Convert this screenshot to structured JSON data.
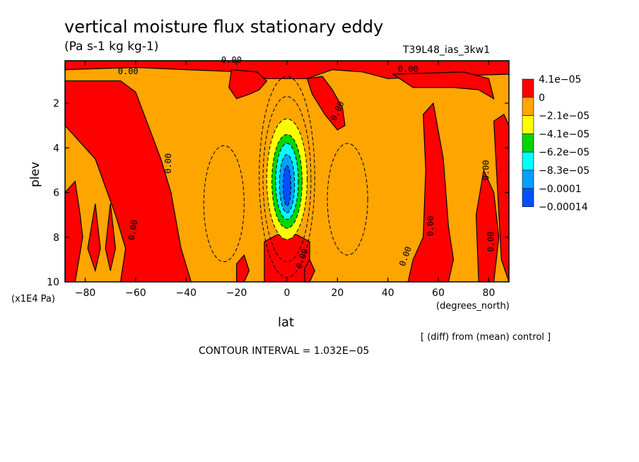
{
  "chart_data": {
    "type": "heatmap",
    "title": "vertical moisture flux stationary eddy",
    "units": "(Pa s-1 kg kg-1)",
    "run_id": "T39L48_ias_3kw1",
    "xlabel": "lat",
    "x_units": "(degrees_north)",
    "ylabel": "plev",
    "y_units": "(x1E4 Pa)",
    "xlim": [
      -88,
      88
    ],
    "ylim": [
      10,
      0.1
    ],
    "x_ticks": [
      -80,
      -60,
      -40,
      -20,
      0,
      20,
      40,
      60,
      80
    ],
    "x_tick_labels": [
      "−80",
      "−60",
      "−40",
      "−20",
      "0",
      "20",
      "40",
      "60",
      "80"
    ],
    "y_ticks": [
      2,
      4,
      6,
      8,
      10
    ],
    "y_tick_labels": [
      "2",
      "4",
      "6",
      "8",
      "10"
    ],
    "contour_interval_label": "CONTOUR INTERVAL = 1.032E−05",
    "note": "[ (diff) from (mean) control ]",
    "contour_labels": [
      "0.00"
    ],
    "legend": {
      "placement": "right",
      "labels": [
        "4.1e−05",
        "0",
        "−2.1e−05",
        "−4.1e−05",
        "−6.2e−05",
        "−8.3e−05",
        "−0.0001",
        "−0.00014"
      ],
      "colors": [
        "#ff0000",
        "#ffa500",
        "#ffff00",
        "#00d600",
        "#00ffff",
        "#00a0ff",
        "#0050ff"
      ]
    },
    "colors": {
      "positive": "#ff0000",
      "near_zero_negative": "#ffa500",
      "level2": "#ffff00",
      "level3": "#00d600",
      "level4": "#00ffff",
      "level5": "#00a0ff",
      "level6": "#0050ff"
    }
  }
}
